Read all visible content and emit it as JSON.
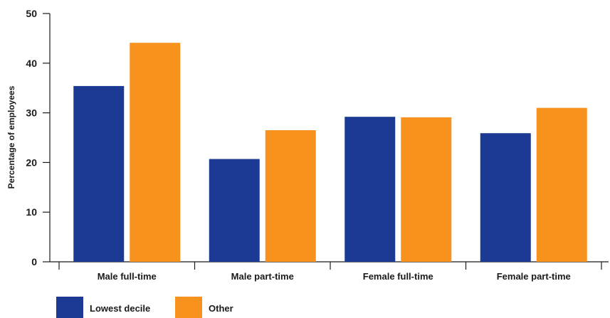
{
  "chart_data": {
    "type": "bar",
    "title": "",
    "xlabel": "",
    "ylabel": "Percentage of employees",
    "ylim": [
      0,
      50
    ],
    "yticks": [
      0,
      10,
      20,
      30,
      40,
      50
    ],
    "grid": false,
    "legend_position": "bottom-left",
    "categories": [
      "Male full-time",
      "Male part-time",
      "Female full-time",
      "Female part-time"
    ],
    "series": [
      {
        "name": "Lowest decile",
        "color": "#1c3a94",
        "values": [
          35.4,
          20.7,
          29.2,
          25.9
        ]
      },
      {
        "name": "Other",
        "color": "#f7921e",
        "values": [
          44.1,
          26.5,
          29.1,
          31.0
        ]
      }
    ]
  }
}
